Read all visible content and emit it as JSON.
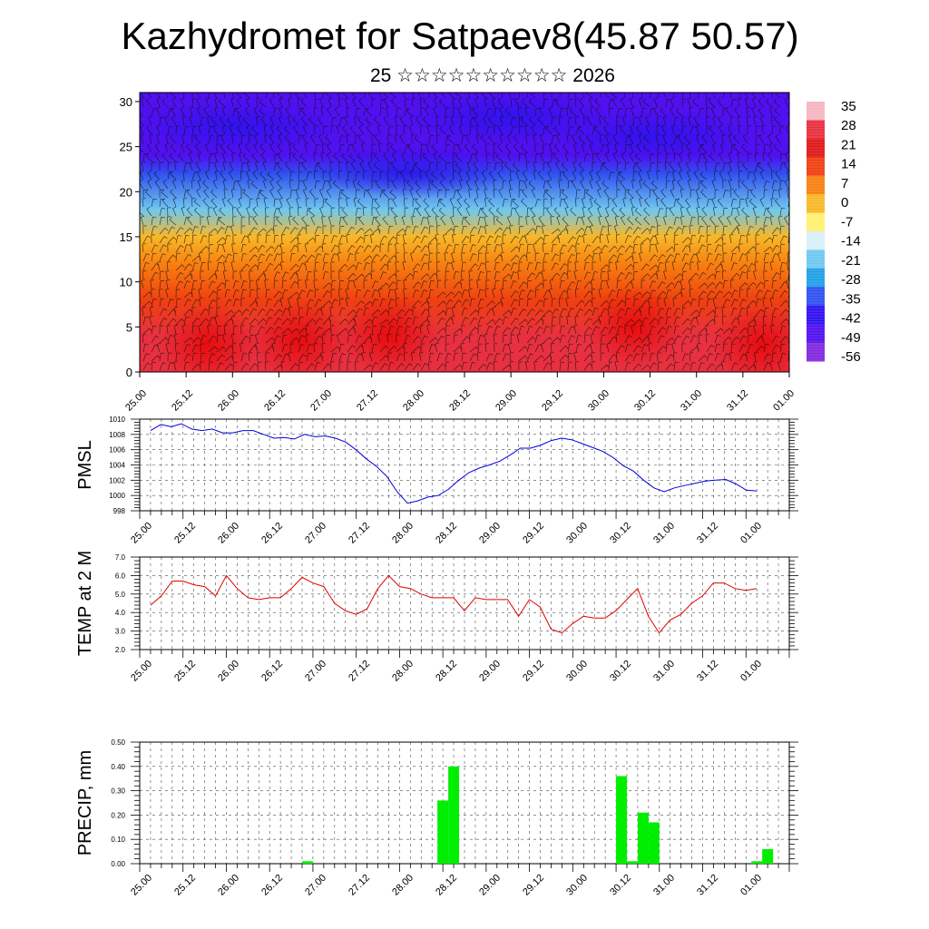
{
  "title": "Kazhydromet for Satpaev8(45.87 50.57)",
  "subtitle": "25 ☆☆☆☆☆☆☆☆☆☆ 2026",
  "time_labels": [
    "25.00",
    "25.12",
    "26.00",
    "26.12",
    "27.00",
    "27.12",
    "28.00",
    "28.12",
    "29.00",
    "29.12",
    "30.00",
    "30.12",
    "31.00",
    "31.12",
    "01.00"
  ],
  "chart_data": [
    {
      "type": "heatmap",
      "title": "Kazhydromet for Satpaev8(45.87 50.57)",
      "x_ticks": [
        "25.00",
        "25.12",
        "26.00",
        "26.12",
        "27.00",
        "27.12",
        "28.00",
        "28.12",
        "29.00",
        "29.12",
        "30.00",
        "30.12",
        "31.00",
        "31.12",
        "01.00"
      ],
      "y_ticks": [
        0,
        5,
        10,
        15,
        20,
        25,
        30
      ],
      "ylim": [
        0,
        31
      ],
      "colorbar": {
        "labels": [
          "35",
          "28",
          "21",
          "14",
          "7",
          "0",
          "-7",
          "-14",
          "-21",
          "-28",
          "-35",
          "-42",
          "-49",
          "-56"
        ],
        "colors_top_to_bottom": [
          "#f6b6c0",
          "#e83040",
          "#e01818",
          "#f04010",
          "#f88010",
          "#f8b828",
          "#fff070",
          "#d8eef8",
          "#70c8f0",
          "#20a0e8",
          "#3050f0",
          "#3010f0",
          "#5010f0",
          "#8028e0"
        ]
      },
      "temperature_bands": [
        {
          "height": 1,
          "value": 24
        },
        {
          "height": 4,
          "value": 22
        },
        {
          "height": 8,
          "value": 12
        },
        {
          "height": 12,
          "value": 4
        },
        {
          "height": 15,
          "value": -7
        },
        {
          "height": 18,
          "value": -28
        },
        {
          "height": 22,
          "value": -42
        },
        {
          "height": 24,
          "value": -52
        },
        {
          "height": 28,
          "value": -56
        }
      ],
      "wind_barbs": true
    },
    {
      "type": "line",
      "ylabel": "PMSL",
      "ylim": [
        998,
        1010
      ],
      "y_ticks": [
        "998",
        "1000",
        "1002",
        "1004",
        "1006",
        "1008",
        "1010"
      ],
      "grid": true,
      "series": [
        {
          "color": "#0000e0",
          "values": [
            1008.5,
            1009.3,
            1009.0,
            1009.4,
            1008.7,
            1008.5,
            1008.7,
            1008.2,
            1008.2,
            1008.5,
            1008.5,
            1008.0,
            1007.5,
            1007.6,
            1007.4,
            1008.0,
            1007.7,
            1007.8,
            1007.5,
            1007.0,
            1006.0,
            1004.8,
            1003.8,
            1002.5,
            1000.5,
            999.0,
            999.3,
            999.8,
            1000.0,
            1000.8,
            1002.0,
            1003.0,
            1003.6,
            1004.0,
            1004.5,
            1005.3,
            1006.2,
            1006.2,
            1006.6,
            1007.2,
            1007.5,
            1007.3,
            1006.8,
            1006.3,
            1005.8,
            1005.0,
            1003.9,
            1003.2,
            1002.0,
            1001.0,
            1000.5,
            1001.0,
            1001.3,
            1001.6,
            1001.9,
            1002.0,
            1002.1,
            1001.5,
            1000.7,
            1000.6
          ]
        }
      ]
    },
    {
      "type": "line",
      "ylabel": "TEMP at 2 M",
      "ylim": [
        2.0,
        7.0
      ],
      "y_ticks": [
        "2.0",
        "3.0",
        "4.0",
        "5.0",
        "6.0",
        "7.0"
      ],
      "grid": true,
      "series": [
        {
          "color": "#e00000",
          "values": [
            4.4,
            4.9,
            5.7,
            5.7,
            5.5,
            5.4,
            4.9,
            6.0,
            5.3,
            4.8,
            4.7,
            4.8,
            4.8,
            5.3,
            5.9,
            5.6,
            5.4,
            4.5,
            4.1,
            3.9,
            4.2,
            5.3,
            6.0,
            5.4,
            5.3,
            5.0,
            4.8,
            4.8,
            4.8,
            4.1,
            4.8,
            4.7,
            4.7,
            4.7,
            3.8,
            4.7,
            4.3,
            3.1,
            2.9,
            3.4,
            3.8,
            3.7,
            3.7,
            4.1,
            4.7,
            5.3,
            3.8,
            2.9,
            3.6,
            3.9,
            4.5,
            4.9,
            5.6,
            5.6,
            5.3,
            5.2,
            5.3
          ]
        }
      ]
    },
    {
      "type": "bar",
      "ylabel": "PRECIP, mm",
      "ylim": [
        0.0,
        0.5
      ],
      "y_ticks": [
        "0.00",
        "0.10",
        "0.20",
        "0.30",
        "0.40",
        "0.50"
      ],
      "grid": true,
      "series": [
        {
          "color": "#00ee00",
          "points": [
            {
              "x": 15.5,
              "value": 0.01
            },
            {
              "x": 28.0,
              "value": 0.26
            },
            {
              "x": 29.0,
              "value": 0.4
            },
            {
              "x": 44.5,
              "value": 0.36
            },
            {
              "x": 45.5,
              "value": 0.01
            },
            {
              "x": 46.5,
              "value": 0.21
            },
            {
              "x": 47.5,
              "value": 0.17
            },
            {
              "x": 57.0,
              "value": 0.01
            },
            {
              "x": 58.0,
              "value": 0.06
            }
          ]
        }
      ]
    }
  ]
}
